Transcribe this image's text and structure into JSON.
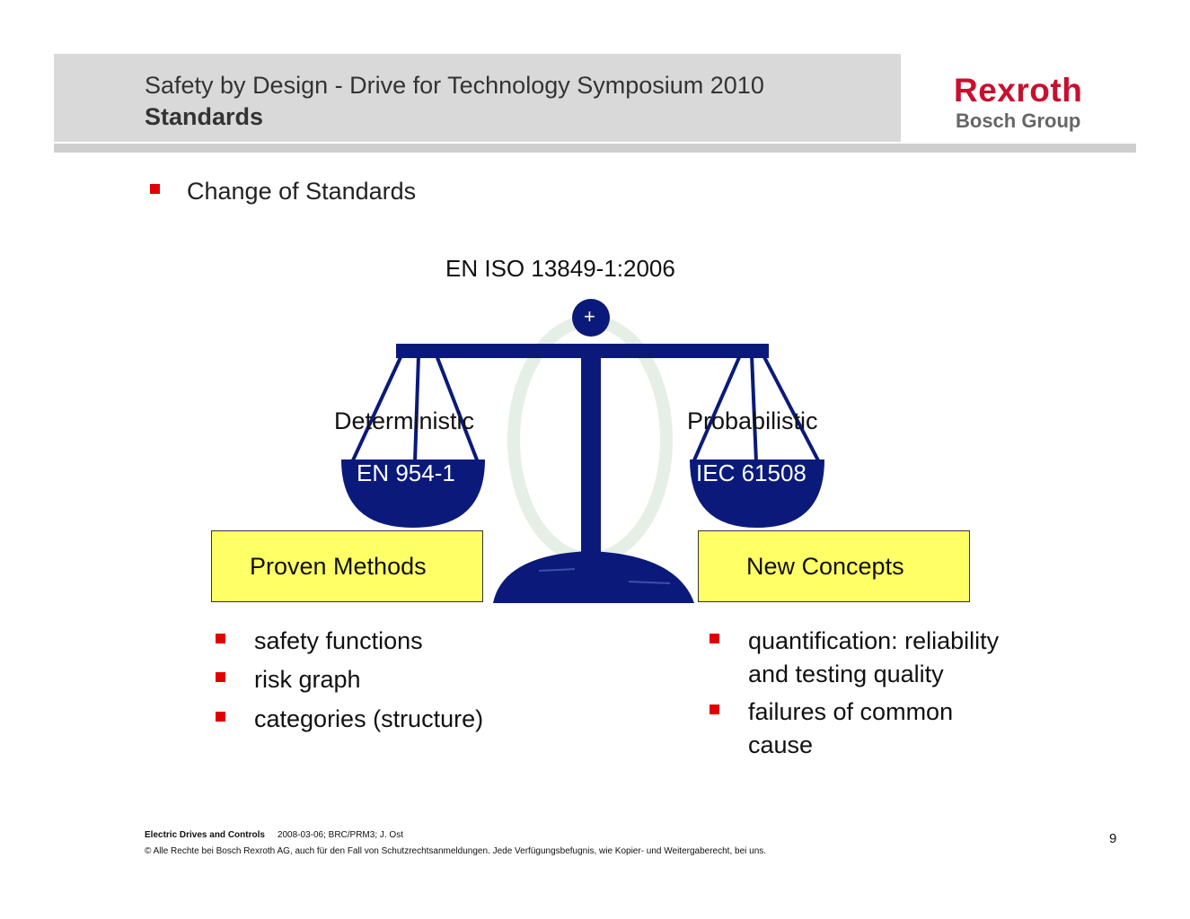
{
  "header": {
    "title": "Safety by Design - Drive for Technology Symposium 2010",
    "subtitle": "Standards"
  },
  "logo": {
    "name": "Rexroth",
    "group": "Bosch Group"
  },
  "main_bullet": "Change of Standards",
  "standard_title": "EN ISO 13849-1:2006",
  "scale": {
    "top_symbol": "+",
    "left": {
      "label": "Deterministic",
      "standard": "EN 954-1",
      "box": "Proven Methods"
    },
    "right": {
      "label": "Probabilistic",
      "standard": "IEC 61508",
      "box": "New Concepts"
    }
  },
  "left_list": [
    "safety functions",
    "risk graph",
    "categories (structure)"
  ],
  "right_list": [
    {
      "line1": "quantification: reliability",
      "line2": "and testing quality"
    },
    {
      "line1": "failures of common",
      "line2": "cause"
    }
  ],
  "footer": {
    "division": "Electric Drives and Controls",
    "meta": "2008-03-06; BRC/PRM3; J. Ost",
    "copyright": "© Alle Rechte bei Bosch Rexroth AG, auch für den Fall von Schutzrechtsanmeldungen. Jede Verfügungsbefugnis, wie Kopier- und Weitergaberecht, bei uns.",
    "page": "9"
  },
  "colors": {
    "navy": "#0b1a7a",
    "bullet_red": "#e00000",
    "box_yellow": "#ffff66",
    "brand_red": "#c8102e"
  }
}
